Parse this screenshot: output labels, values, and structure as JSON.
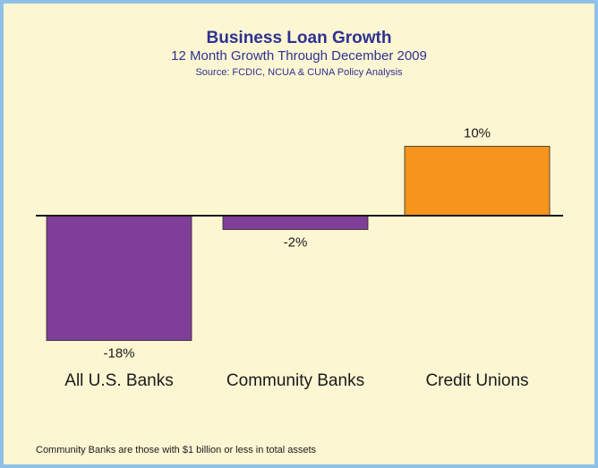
{
  "chart_data": {
    "type": "bar",
    "title": "Business Loan Growth",
    "subtitle": "12 Month Growth Through December 2009",
    "source": "Source: FCDIC, NCUA & CUNA Policy Analysis",
    "categories": [
      "All U.S. Banks",
      "Community Banks",
      "Credit Unions"
    ],
    "values": [
      -18,
      -2,
      10
    ],
    "value_labels": [
      "-18%",
      "-2%",
      "10%"
    ],
    "colors": [
      "#7f3f98",
      "#7f3f98",
      "#f7941d"
    ],
    "ylim": [
      -18,
      10
    ],
    "grid": false,
    "footnote": "Community Banks are those with $1 billion or less in total assets"
  }
}
